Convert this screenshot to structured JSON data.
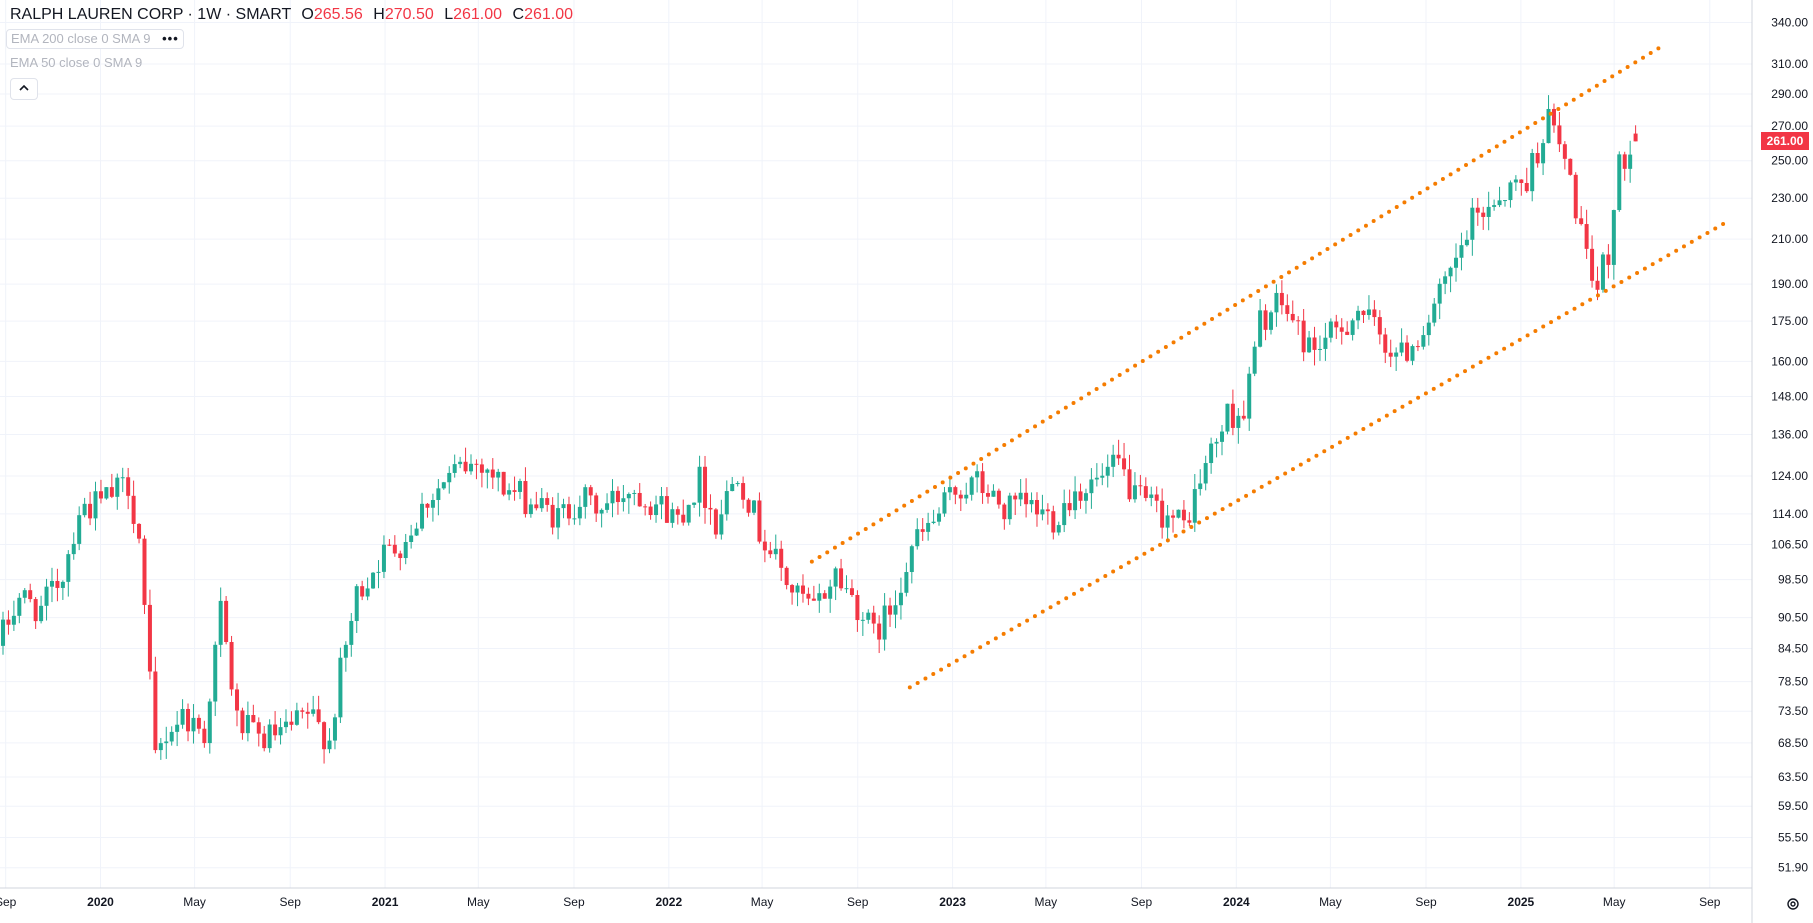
{
  "legend": {
    "symbol": "RALPH LAUREN CORP · 1W · SMART",
    "o_label": "O",
    "o_value": "265.56",
    "h_label": "H",
    "h_value": "270.50",
    "l_label": "L",
    "l_value": "261.00",
    "c_label": "C",
    "c_value": "261.00"
  },
  "indicators": [
    {
      "label": "EMA 200 close 0 SMA 9",
      "more": "•••"
    },
    {
      "label": "EMA 50 close 0 SMA 9"
    }
  ],
  "collapse_icon": "chevron-up-icon",
  "settings_icon": "gear-icon",
  "last_price": "261.00",
  "colors": {
    "up": "#22ab94",
    "down": "#f23645",
    "trendline": "#f57c00",
    "grid": "#f0f3fa"
  },
  "chart_data": {
    "type": "candlestick",
    "scale": "log",
    "ylim": [
      50.5,
      348
    ],
    "xlim": [
      "2019-08-26",
      "2025-10-06"
    ],
    "y_ticks": [
      "340.00",
      "310.00",
      "290.00",
      "270.00",
      "250.00",
      "230.00",
      "210.00",
      "190.00",
      "175.00",
      "160.00",
      "148.00",
      "136.00",
      "124.00",
      "114.00",
      "106.50",
      "98.50",
      "90.50",
      "84.50",
      "78.50",
      "73.50",
      "68.50",
      "63.50",
      "59.50",
      "55.50",
      "51.90"
    ],
    "x_ticks": [
      {
        "label": "Sep",
        "date": "2019-09-01",
        "bold": false
      },
      {
        "label": "2020",
        "date": "2020-01-01",
        "bold": true
      },
      {
        "label": "May",
        "date": "2020-05-01",
        "bold": false
      },
      {
        "label": "Sep",
        "date": "2020-09-01",
        "bold": false
      },
      {
        "label": "2021",
        "date": "2021-01-01",
        "bold": true
      },
      {
        "label": "May",
        "date": "2021-05-01",
        "bold": false
      },
      {
        "label": "Sep",
        "date": "2021-09-01",
        "bold": false
      },
      {
        "label": "2022",
        "date": "2022-01-01",
        "bold": true
      },
      {
        "label": "May",
        "date": "2022-05-01",
        "bold": false
      },
      {
        "label": "Sep",
        "date": "2022-09-01",
        "bold": false
      },
      {
        "label": "2023",
        "date": "2023-01-01",
        "bold": true
      },
      {
        "label": "May",
        "date": "2023-05-01",
        "bold": false
      },
      {
        "label": "Sep",
        "date": "2023-09-01",
        "bold": false
      },
      {
        "label": "2024",
        "date": "2024-01-01",
        "bold": true
      },
      {
        "label": "May",
        "date": "2024-05-01",
        "bold": false
      },
      {
        "label": "Sep",
        "date": "2024-09-01",
        "bold": false
      },
      {
        "label": "2025",
        "date": "2025-01-01",
        "bold": true
      },
      {
        "label": "May",
        "date": "2025-05-01",
        "bold": false
      },
      {
        "label": "Sep",
        "date": "2025-09-01",
        "bold": false
      }
    ],
    "anchors": [
      [
        "2019-08-26",
        85
      ],
      [
        "2019-09-23",
        95
      ],
      [
        "2019-10-21",
        92
      ],
      [
        "2019-11-18",
        100
      ],
      [
        "2019-12-09",
        115
      ],
      [
        "2020-01-06",
        117
      ],
      [
        "2020-02-10",
        122
      ],
      [
        "2020-02-24",
        108
      ],
      [
        "2020-03-16",
        66
      ],
      [
        "2020-03-30",
        70
      ],
      [
        "2020-04-20",
        73
      ],
      [
        "2020-05-18",
        70
      ],
      [
        "2020-06-08",
        92
      ],
      [
        "2020-06-29",
        72
      ],
      [
        "2020-07-27",
        69
      ],
      [
        "2020-08-31",
        70
      ],
      [
        "2020-09-28",
        73
      ],
      [
        "2020-10-26",
        69
      ],
      [
        "2020-11-09",
        80
      ],
      [
        "2020-11-30",
        95
      ],
      [
        "2020-12-28",
        103
      ],
      [
        "2021-02-01",
        108
      ],
      [
        "2021-03-01",
        118
      ],
      [
        "2021-04-12",
        126
      ],
      [
        "2021-05-10",
        128
      ],
      [
        "2021-06-07",
        121
      ],
      [
        "2021-07-12",
        117
      ],
      [
        "2021-08-16",
        113
      ],
      [
        "2021-09-13",
        118
      ],
      [
        "2021-10-11",
        115
      ],
      [
        "2021-11-15",
        121
      ],
      [
        "2021-12-20",
        117
      ],
      [
        "2022-01-17",
        113
      ],
      [
        "2022-02-14",
        123
      ],
      [
        "2022-03-07",
        112
      ],
      [
        "2022-04-04",
        126
      ],
      [
        "2022-05-02",
        110
      ],
      [
        "2022-06-13",
        96
      ],
      [
        "2022-07-11",
        92
      ],
      [
        "2022-08-08",
        100
      ],
      [
        "2022-09-05",
        93
      ],
      [
        "2022-09-26",
        87
      ],
      [
        "2022-10-17",
        92
      ],
      [
        "2022-11-14",
        106
      ],
      [
        "2022-12-12",
        112
      ],
      [
        "2023-01-09",
        120
      ],
      [
        "2023-02-06",
        122
      ],
      [
        "2023-03-13",
        115
      ],
      [
        "2023-04-10",
        116
      ],
      [
        "2023-05-15",
        113
      ],
      [
        "2023-06-12",
        120
      ],
      [
        "2023-07-17",
        123
      ],
      [
        "2023-08-07",
        127
      ],
      [
        "2023-08-28",
        118
      ],
      [
        "2023-09-25",
        115
      ],
      [
        "2023-10-30",
        111
      ],
      [
        "2023-11-27",
        127
      ],
      [
        "2023-12-25",
        142
      ],
      [
        "2024-01-15",
        143
      ],
      [
        "2024-02-05",
        175
      ],
      [
        "2024-03-04",
        182
      ],
      [
        "2024-04-08",
        165
      ],
      [
        "2024-05-13",
        170
      ],
      [
        "2024-06-10",
        180
      ],
      [
        "2024-07-15",
        167
      ],
      [
        "2024-08-05",
        162
      ],
      [
        "2024-09-02",
        172
      ],
      [
        "2024-10-07",
        193
      ],
      [
        "2024-11-04",
        218
      ],
      [
        "2024-12-02",
        230
      ],
      [
        "2025-01-13",
        240
      ],
      [
        "2025-02-10",
        275
      ],
      [
        "2025-03-03",
        250
      ],
      [
        "2025-03-24",
        215
      ],
      [
        "2025-04-07",
        185
      ],
      [
        "2025-04-28",
        205
      ],
      [
        "2025-05-12",
        245
      ],
      [
        "2025-05-26",
        262
      ]
    ],
    "last_candle": {
      "date": "2025-05-26",
      "open": 265.56,
      "high": 270.5,
      "low": 261.0,
      "close": 261.0
    },
    "trendlines": [
      {
        "start": [
          "2022-07-04",
          102.5
        ],
        "end": [
          "2025-06-30",
          322
        ]
      },
      {
        "start": [
          "2022-11-07",
          77.5
        ],
        "end": [
          "2025-09-22",
          218
        ]
      }
    ]
  }
}
